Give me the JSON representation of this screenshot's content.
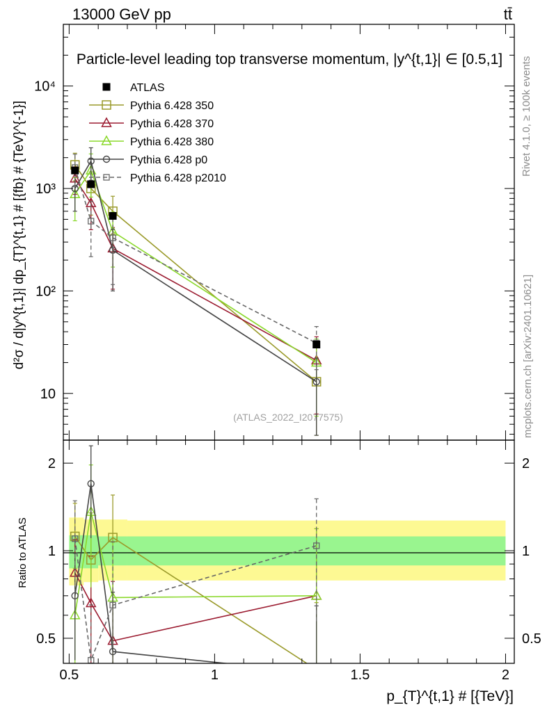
{
  "header": {
    "energy_label": "13000 GeV pp",
    "process_label": "tt̄",
    "rivet_label": "Rivet 4.1.0, ≥ 100k events",
    "site_label": "mcplots.cern.ch [arXiv:2401.10621]"
  },
  "chart_data": [
    {
      "type": "line",
      "panel": "main",
      "title": "Particle-level leading top transverse momentum, |y^{t,1}| ∈ [0.5,1]",
      "ylabel": "d²σ / d|y^{t,1}| dp_{T}^{t,1} # [{fb} # {TeV}^{-1}]",
      "yscale": "log",
      "xlim": [
        0.48,
        2.03
      ],
      "ylim": [
        3.5,
        40000
      ],
      "yticks": [
        {
          "v": 10,
          "label": "10"
        },
        {
          "v": 100,
          "label": "10²"
        },
        {
          "v": 1000,
          "label": "10³"
        },
        {
          "v": 10000,
          "label": "10⁴"
        }
      ],
      "watermark": "(ATLAS_2022_I2077575)",
      "reference": {
        "name": "ATLAS",
        "x": [
          0.52,
          0.575,
          0.65,
          1.35
        ],
        "y": [
          1500,
          1100,
          540,
          30
        ]
      },
      "series": [
        {
          "name": "Pythia 6.428 350",
          "color": "#9a9a2a",
          "marker": "square",
          "dash": "",
          "x": [
            0.52,
            0.575,
            0.65,
            1.35
          ],
          "y": [
            1700,
            1000,
            600,
            13
          ],
          "err": [
            0.3,
            0.45,
            0.4,
            0.7
          ]
        },
        {
          "name": "Pythia 6.428 370",
          "color": "#9b1b30",
          "marker": "triangle",
          "dash": "",
          "x": [
            0.52,
            0.575,
            0.65,
            1.35
          ],
          "y": [
            1250,
            720,
            260,
            21
          ],
          "err": [
            0.3,
            0.45,
            0.6,
            0.7
          ]
        },
        {
          "name": "Pythia 6.428 380",
          "color": "#8ad82a",
          "marker": "triangle",
          "dash": "",
          "x": [
            0.52,
            0.575,
            0.65,
            1.35
          ],
          "y": [
            880,
            1500,
            380,
            20
          ],
          "err": [
            0.45,
            0.45,
            0.55,
            0.7
          ]
        },
        {
          "name": "Pythia 6.428 p0",
          "color": "#444444",
          "marker": "circle",
          "dash": "",
          "x": [
            0.52,
            0.575,
            0.65,
            1.35
          ],
          "y": [
            1000,
            1850,
            250,
            13
          ],
          "err": [
            0.4,
            0.35,
            0.6,
            0.7
          ]
        },
        {
          "name": "Pythia 6.428 p2010",
          "color": "#666666",
          "marker": "square-small",
          "dash": "6,4",
          "x": [
            0.52,
            0.575,
            0.65,
            1.35
          ],
          "y": [
            1600,
            480,
            330,
            31
          ],
          "err": [
            0.35,
            0.55,
            0.65,
            0.45
          ]
        }
      ]
    },
    {
      "type": "line",
      "panel": "ratio",
      "ylabel": "Ratio to ATLAS",
      "xlabel": "p_{T}^{t,1} # [{TeV}]",
      "yscale": "log",
      "xlim": [
        0.48,
        2.03
      ],
      "ylim": [
        0.41,
        2.4
      ],
      "xticks": [
        {
          "v": 0.5,
          "label": "0.5"
        },
        {
          "v": 1,
          "label": "1"
        },
        {
          "v": 1.5,
          "label": "1.5"
        },
        {
          "v": 2,
          "label": "2"
        }
      ],
      "yticks": [
        {
          "v": 0.5,
          "label": "0.5"
        },
        {
          "v": 1,
          "label": "1"
        },
        {
          "v": 2,
          "label": "2"
        }
      ],
      "bands": {
        "edges": [
          0.5,
          0.55,
          0.6,
          0.7,
          2.0
        ],
        "outer": [
          [
            0.76,
            1.3
          ],
          [
            0.78,
            1.28
          ],
          [
            0.79,
            1.28
          ],
          [
            0.79,
            1.27
          ]
        ],
        "inner": [
          [
            0.87,
            1.13
          ],
          [
            0.87,
            1.13
          ],
          [
            0.89,
            1.12
          ],
          [
            0.89,
            1.12
          ]
        ]
      },
      "series": [
        {
          "name": "Pythia 6.428 350",
          "y": [
            1.12,
            0.93,
            1.11,
            0.39
          ],
          "err": [
            0.3,
            0.45,
            0.4,
            0.7
          ]
        },
        {
          "name": "Pythia 6.428 370",
          "y": [
            0.84,
            0.66,
            0.49,
            0.7
          ],
          "err": [
            0.3,
            0.45,
            0.6,
            0.7
          ]
        },
        {
          "name": "Pythia 6.428 380",
          "y": [
            0.6,
            1.36,
            0.69,
            0.7
          ],
          "err": [
            0.45,
            0.45,
            0.55,
            0.7
          ]
        },
        {
          "name": "Pythia 6.428 p0",
          "y": [
            0.7,
            1.7,
            0.45,
            0.38
          ],
          "err": [
            0.4,
            0.35,
            0.6,
            0.7
          ]
        },
        {
          "name": "Pythia 6.428 p2010",
          "y": [
            1.1,
            0.42,
            0.65,
            1.04
          ],
          "err": [
            0.35,
            0.55,
            0.65,
            0.45
          ]
        }
      ]
    }
  ]
}
